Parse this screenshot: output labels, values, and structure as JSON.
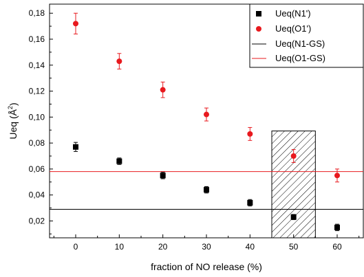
{
  "chart_data": {
    "type": "scatter",
    "xlabel": "fraction of NO release (%)",
    "ylabel": "Ueq (Å²)",
    "ylabel_main": "Ueq (Å",
    "ylabel_sup": "2",
    "ylabel_end": ")",
    "xlim": [
      -6,
      66
    ],
    "ylim": [
      0.007,
      0.187
    ],
    "x_ticks": [
      0,
      10,
      20,
      30,
      40,
      50,
      60
    ],
    "x_tick_labels": [
      "0",
      "10",
      "20",
      "30",
      "40",
      "50",
      "60"
    ],
    "y_ticks": [
      0.02,
      0.04,
      0.06,
      0.08,
      0.1,
      0.12,
      0.14,
      0.16,
      0.18
    ],
    "y_tick_labels": [
      "0,02",
      "0,04",
      "0,06",
      "0,08",
      "0,10",
      "0,12",
      "0,14",
      "0,16",
      "0,18"
    ],
    "grid": false,
    "legend_position": "top-right",
    "series": [
      {
        "name": "Ueq(N1')",
        "marker": "square",
        "color": "#000000",
        "x": [
          0,
          10,
          20,
          30,
          40,
          50,
          60
        ],
        "y": [
          0.077,
          0.066,
          0.055,
          0.044,
          0.034,
          0.023,
          0.015
        ],
        "err": [
          0.0035,
          0.0025,
          0.0025,
          0.0025,
          0.0025,
          0.002,
          0.0025
        ]
      },
      {
        "name": "Ueq(O1')",
        "marker": "circle",
        "color": "#e8191e",
        "x": [
          0,
          10,
          20,
          30,
          40,
          50,
          60
        ],
        "y": [
          0.172,
          0.143,
          0.121,
          0.102,
          0.087,
          0.07,
          0.055
        ],
        "err": [
          0.008,
          0.006,
          0.006,
          0.005,
          0.005,
          0.005,
          0.005
        ]
      }
    ],
    "reference_lines": [
      {
        "name": "Ueq(N1-GS)",
        "y": 0.029,
        "color": "#000000"
      },
      {
        "name": "Ueq(O1-GS)",
        "y": 0.058,
        "color": "#e8191e"
      }
    ],
    "highlight_region": {
      "x_range": [
        45,
        55
      ],
      "y_range": [
        0.007,
        0.0893
      ],
      "pattern": "diagonal-hatch"
    }
  }
}
